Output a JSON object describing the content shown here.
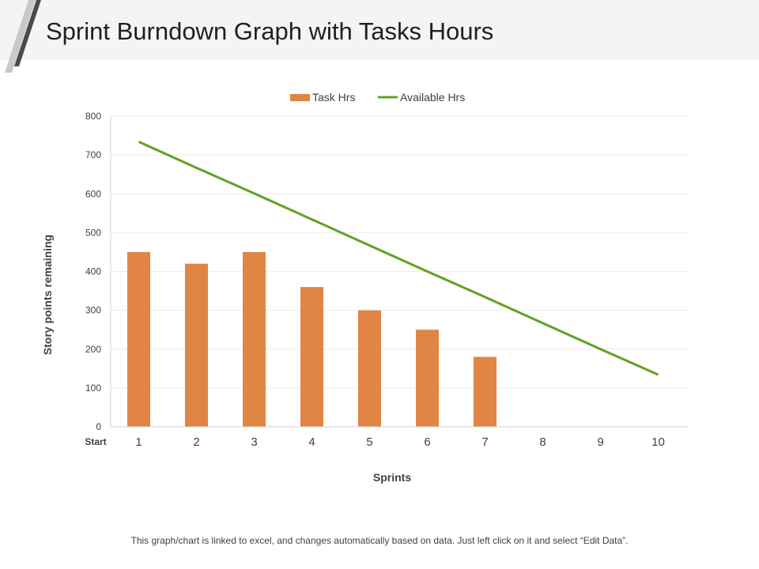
{
  "header": {
    "title": "Sprint Burndown Graph with Tasks Hours"
  },
  "chart_data": {
    "type": "bar",
    "ylabel": "Story points remaining",
    "xlabel": "Sprints",
    "x_start_label": "Start",
    "categories": [
      "1",
      "2",
      "3",
      "4",
      "5",
      "6",
      "7",
      "8",
      "9",
      "10"
    ],
    "ylim": [
      0,
      800
    ],
    "yticks": [
      0,
      100,
      200,
      300,
      400,
      500,
      600,
      700,
      800
    ],
    "grid": true,
    "legend_position": "top",
    "series": [
      {
        "name": "Task Hrs",
        "kind": "bar",
        "color": "#e08544",
        "values": [
          450,
          420,
          450,
          360,
          300,
          250,
          180,
          null,
          null,
          null
        ]
      },
      {
        "name": "Available Hrs",
        "kind": "line",
        "color": "#5fa31f",
        "values": [
          734,
          667,
          601,
          534,
          467,
          400,
          334,
          267,
          200,
          134
        ]
      }
    ]
  },
  "footer": {
    "note": "This graph/chart is linked to excel, and changes automatically based on data. Just left click on it and select “Edit Data”."
  }
}
